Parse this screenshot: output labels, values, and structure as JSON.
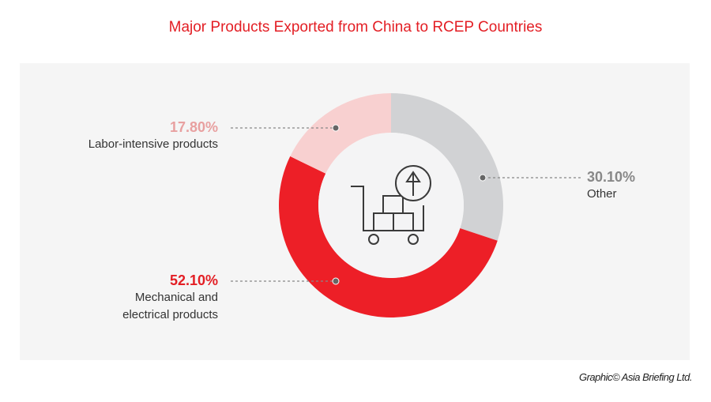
{
  "chart_data": {
    "type": "pie",
    "title": "Major Products Exported from China to RCEP Countries",
    "slices": [
      {
        "label": "Other",
        "value": 30.1,
        "display": "30.10%",
        "color": "#d1d2d4"
      },
      {
        "label": "Mechanical and electrical products",
        "value": 52.1,
        "display": "52.10%",
        "color": "#ed1f27"
      },
      {
        "label": "Labor-intensive products",
        "value": 17.8,
        "display": "17.80%",
        "color": "#f8d0d0"
      }
    ],
    "center_icon": "cart-with-boxes-export-icon"
  },
  "label_lines": {
    "mech_1": "Mechanical and",
    "mech_2": "electrical products"
  },
  "credit": "Graphic© Asia Briefing Ltd."
}
